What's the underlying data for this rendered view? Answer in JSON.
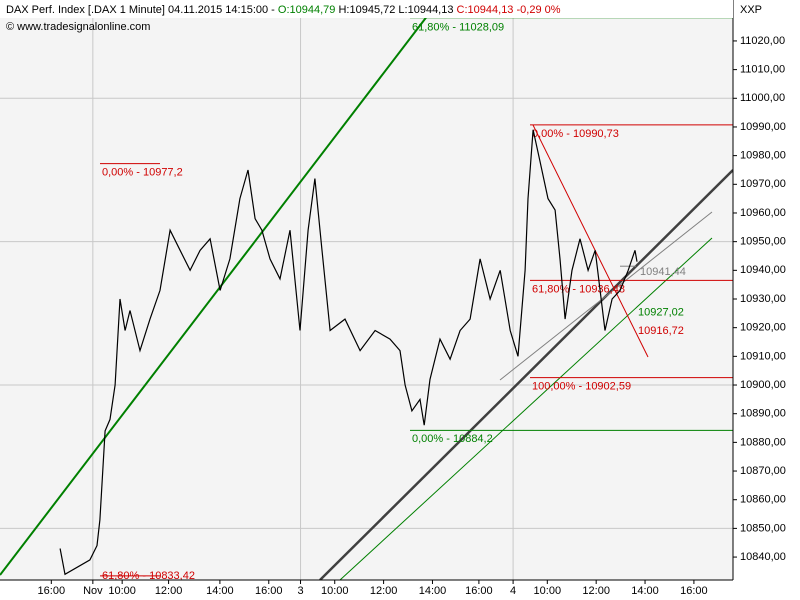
{
  "chart_data": {
    "type": "line",
    "header": {
      "instrument": "DAX Perf. Index [.DAX  1 Minute] 04.11.2015 14:15:00 -",
      "open": "O:10944,79",
      "high_low": "H:10945,72 L:10944,13",
      "close": "C:10944,13 -0,29 0%"
    },
    "watermark": "© www.tradesignalonline.com",
    "axis_label": "XXP",
    "color": "#000000",
    "grid": true,
    "xlim": [
      0,
      30
    ],
    "ylim": [
      10832,
      11028
    ],
    "yticks": [
      {
        "value": 10840,
        "label": "10840,00"
      },
      {
        "value": 10850,
        "label": "10850,00"
      },
      {
        "value": 10860,
        "label": "10860,00"
      },
      {
        "value": 10870,
        "label": "10870,00"
      },
      {
        "value": 10880,
        "label": "10880,00"
      },
      {
        "value": 10890,
        "label": "10890,00"
      },
      {
        "value": 10900,
        "label": "10900,00"
      },
      {
        "value": 10910,
        "label": "10910,00"
      },
      {
        "value": 10920,
        "label": "10920,00"
      },
      {
        "value": 10930,
        "label": "10930,00"
      },
      {
        "value": 10940,
        "label": "10940,00"
      },
      {
        "value": 10950,
        "label": "10950,00"
      },
      {
        "value": 10960,
        "label": "10960,00"
      },
      {
        "value": 10970,
        "label": "10970,00"
      },
      {
        "value": 10980,
        "label": "10980,00"
      },
      {
        "value": 10990,
        "label": "10990,00"
      },
      {
        "value": 11000,
        "label": "11000,00"
      },
      {
        "value": 11010,
        "label": "11010,00"
      },
      {
        "value": 11020,
        "label": "11020,00"
      }
    ],
    "xticks": [
      {
        "value": 2.1,
        "label": "16:00"
      },
      {
        "value": 3.8,
        "label": "Nov"
      },
      {
        "value": 5.0,
        "label": "10:00"
      },
      {
        "value": 6.9,
        "label": "12:00"
      },
      {
        "value": 9.0,
        "label": "14:00"
      },
      {
        "value": 11.0,
        "label": "16:00"
      },
      {
        "value": 12.3,
        "label": "3"
      },
      {
        "value": 13.7,
        "label": "10:00"
      },
      {
        "value": 15.7,
        "label": "12:00"
      },
      {
        "value": 17.7,
        "label": "14:00"
      },
      {
        "value": 19.6,
        "label": "16:00"
      },
      {
        "value": 21.0,
        "label": "4"
      },
      {
        "value": 22.4,
        "label": "10:00"
      },
      {
        "value": 24.4,
        "label": "12:00"
      },
      {
        "value": 26.4,
        "label": "14:00"
      },
      {
        "value": 28.4,
        "label": "16:00"
      }
    ],
    "x": [
      2.46,
      2.66,
      3.68,
      3.97,
      4.09,
      4.3,
      4.5,
      4.71,
      4.91,
      5.12,
      5.32,
      5.73,
      6.14,
      6.55,
      6.96,
      7.37,
      7.78,
      8.19,
      8.6,
      9.01,
      9.41,
      9.82,
      10.15,
      10.44,
      10.72,
      11.05,
      11.46,
      11.87,
      12.28,
      12.61,
      12.89,
      13.18,
      13.51,
      14.12,
      14.74,
      15.35,
      15.96,
      16.37,
      16.58,
      16.86,
      17.19,
      17.36,
      17.6,
      18.01,
      18.42,
      18.83,
      19.24,
      19.65,
      20.06,
      20.47,
      20.88,
      21.2,
      21.49,
      21.61,
      21.82,
      22.1,
      22.43,
      22.72,
      22.92,
      23.13,
      23.41,
      23.74,
      24.07,
      24.36,
      24.56,
      24.76,
      25.05,
      25.38,
      25.71,
      25.99,
      26.07
    ],
    "values": [
      10843,
      10834,
      10839,
      10844,
      10853,
      10884,
      10888,
      10900,
      10930,
      10919,
      10926,
      10912,
      10923,
      10933,
      10954,
      10947,
      10940,
      10947,
      10951,
      10933,
      10944,
      10965,
      10975,
      10958,
      10954,
      10944,
      10937,
      10954,
      10919,
      10954,
      10972,
      10947,
      10919,
      10923,
      10912,
      10919,
      10916,
      10912,
      10900,
      10891,
      10895,
      10886,
      10902,
      10916,
      10909,
      10919,
      10923,
      10944,
      10930,
      10940,
      10919,
      10910,
      10940,
      10965,
      10989,
      10978,
      10965,
      10961,
      10944,
      10923,
      10940,
      10951,
      10940,
      10947,
      10933,
      10919,
      10930,
      10933,
      10940,
      10947,
      10943
    ],
    "annotations": [
      {
        "label": "0,00% - 10977,2",
        "value": 10977.2,
        "color": "#d00000"
      },
      {
        "label": "61,80% - 11028,09",
        "value": 11028.09,
        "color": "#008000"
      },
      {
        "label": "0,00% - 10884,2",
        "value": 10884.2,
        "color": "#008000"
      },
      {
        "label": "0,00% - 10990,73",
        "value": 10990.73,
        "color": "#d00000"
      },
      {
        "label": "61,80% - 10936,48",
        "value": 10936.48,
        "color": "#d00000"
      },
      {
        "label": "100,00% - 10902,59",
        "value": 10902.59,
        "color": "#d00000"
      },
      {
        "label": "61,80% - 10833,42",
        "value": 10833.42,
        "color": "#d00000"
      },
      {
        "label": "10941,44",
        "value": 10941.44,
        "color": "#808080"
      },
      {
        "label": "10927,02",
        "value": 10927.02,
        "color": "#008000"
      },
      {
        "label": "10916,72",
        "value": 10916.72,
        "color": "#d00000"
      }
    ]
  }
}
